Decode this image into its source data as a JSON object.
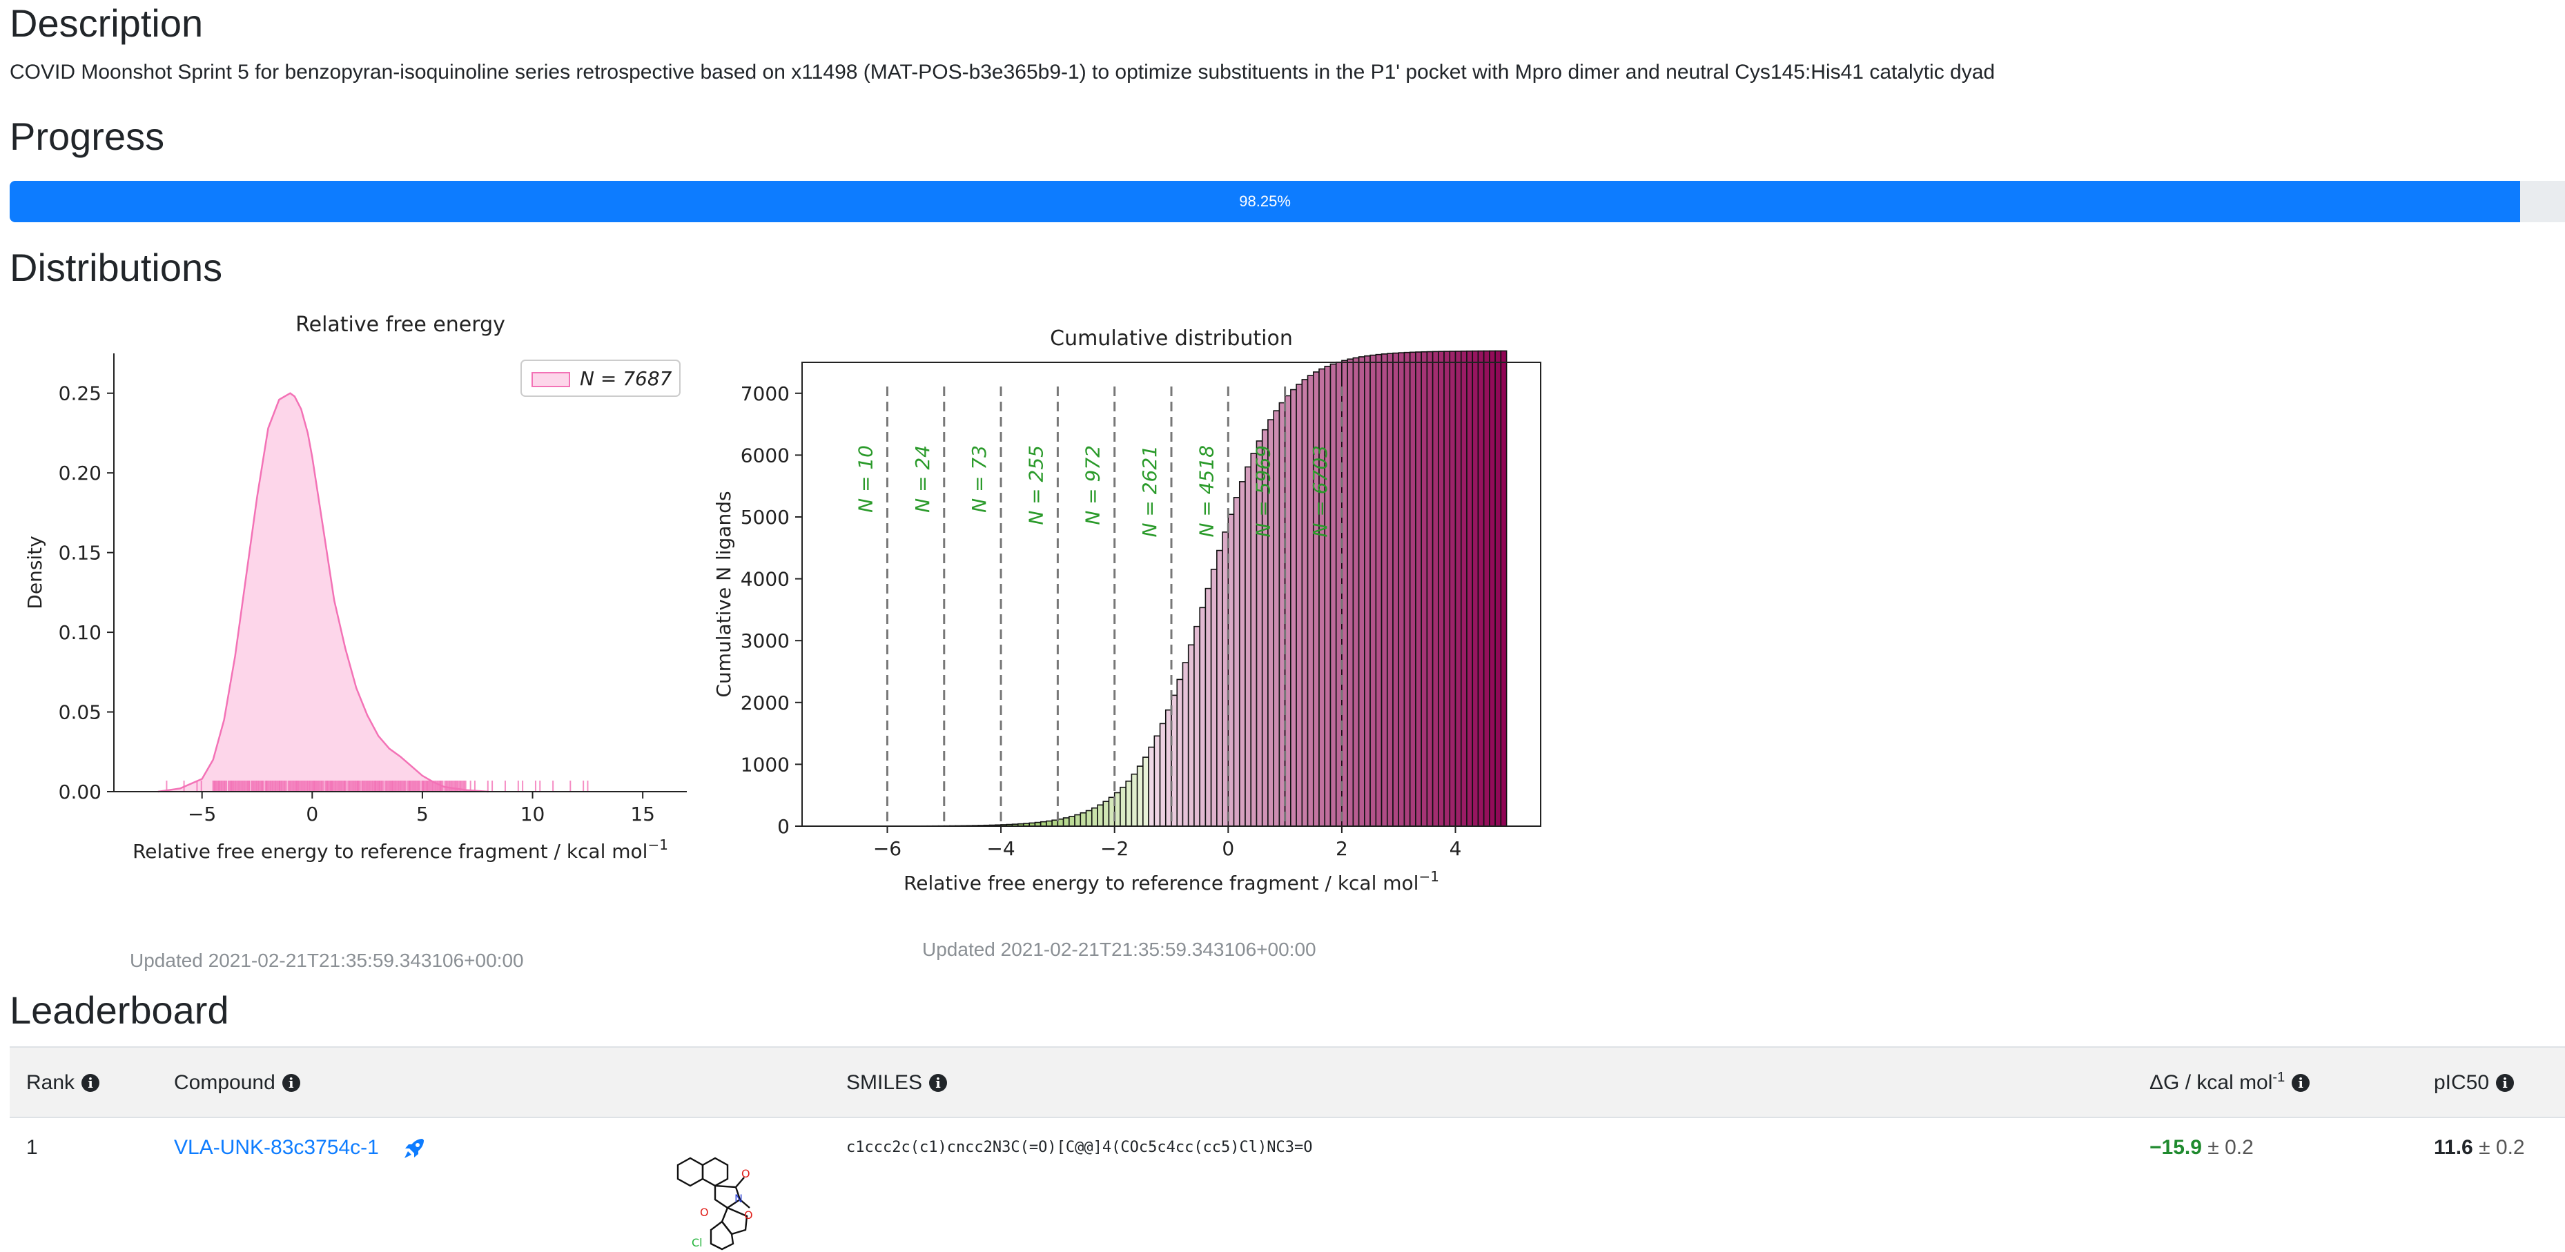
{
  "sections": {
    "description_title": "Description",
    "description_text": "COVID Moonshot Sprint 5 for benzopyran-isoquinoline series retrospective based on x11498 (MAT-POS-b3e365b9-1) to optimize substituents in the P1' pocket with Mpro dimer and neutral Cys145:His41 catalytic dyad",
    "progress_title": "Progress",
    "distributions_title": "Distributions",
    "leaderboard_title": "Leaderboard"
  },
  "progress": {
    "value_percent": 98.25,
    "label": "98.25%"
  },
  "plots": {
    "density_updated": "Updated 2021-02-21T21:35:59.343106+00:00",
    "cumulative_updated": "Updated 2021-02-21T21:35:59.343106+00:00"
  },
  "chart_data": [
    {
      "type": "area",
      "title": "Relative free energy",
      "xlabel": "Relative free energy to reference fragment / kcal mol",
      "xlabel_sup": "−1",
      "ylabel": "Density",
      "xlim": [
        -9,
        17
      ],
      "ylim": [
        0,
        0.275
      ],
      "x_ticks": [
        -5,
        0,
        5,
        10,
        15
      ],
      "y_ticks": [
        0.0,
        0.05,
        0.1,
        0.15,
        0.2,
        0.25
      ],
      "y_tick_labels": [
        "0.00",
        "0.05",
        "0.10",
        "0.15",
        "0.20",
        "0.25"
      ],
      "legend": {
        "label": "N = 7687",
        "placement": "top-right"
      },
      "color": "#f372b6",
      "fill": "#fdd6ea",
      "x": [
        -7.0,
        -6.0,
        -5.0,
        -4.5,
        -4.0,
        -3.5,
        -3.0,
        -2.5,
        -2.0,
        -1.5,
        -1.0,
        -0.8,
        -0.5,
        -0.2,
        0.0,
        0.5,
        1.0,
        1.5,
        2.0,
        2.5,
        3.0,
        3.5,
        4.0,
        4.5,
        5.0,
        5.5,
        6.0,
        7.0,
        8.0
      ],
      "values": [
        0.0,
        0.002,
        0.008,
        0.02,
        0.045,
        0.085,
        0.135,
        0.185,
        0.228,
        0.246,
        0.25,
        0.248,
        0.24,
        0.225,
        0.21,
        0.165,
        0.12,
        0.09,
        0.065,
        0.048,
        0.035,
        0.027,
        0.022,
        0.016,
        0.01,
        0.006,
        0.003,
        0.001,
        0.0
      ],
      "rug_range": [
        -7.0,
        12.7
      ]
    },
    {
      "type": "bar",
      "title": "Cumulative distribution",
      "xlabel": "Relative free energy to reference fragment / kcal mol",
      "xlabel_sup": "−1",
      "ylabel": "Cumulative N ligands",
      "xlim": [
        -7.5,
        5.5
      ],
      "ylim": [
        0,
        7500
      ],
      "x_ticks": [
        -6,
        -4,
        -2,
        0,
        2,
        4
      ],
      "y_ticks": [
        0,
        1000,
        2000,
        3000,
        4000,
        5000,
        6000,
        7000
      ],
      "thresholds": [
        {
          "x": -6,
          "label": "N = 10"
        },
        {
          "x": -5,
          "label": "N = 24"
        },
        {
          "x": -4,
          "label": "N = 73"
        },
        {
          "x": -3,
          "label": "N = 255"
        },
        {
          "x": -2,
          "label": "N = 972"
        },
        {
          "x": -1,
          "label": "N = 2621"
        },
        {
          "x": 0,
          "label": "N = 4518"
        },
        {
          "x": 1,
          "label": "N = 5969"
        },
        {
          "x": 2,
          "label": "N = 6703"
        }
      ],
      "x_max": 4.9,
      "total": 7687,
      "color_low": "#93c55a",
      "color_high": "#8e0152"
    }
  ],
  "leaderboard": {
    "headers": {
      "rank": "Rank",
      "compound": "Compound",
      "smiles": "SMILES",
      "dg": "ΔG / kcal mol",
      "dg_sup": "-1",
      "pic50": "pIC50"
    },
    "rows": [
      {
        "rank": "1",
        "compound": "VLA-UNK-83c3754c-1",
        "smiles": "c1ccc2c(c1)cncc2N3C(=O)[C@@]4(COc5c4cc(cc5)Cl)NC3=O",
        "dg_value": "−15.9",
        "dg_err": "± 0.2",
        "pic50_value": "11.6",
        "pic50_err": "± 0.2"
      }
    ]
  },
  "icons": {
    "info": "info-icon",
    "rocket": "rocket-icon",
    "molecule": "molecule-structure-icon"
  }
}
